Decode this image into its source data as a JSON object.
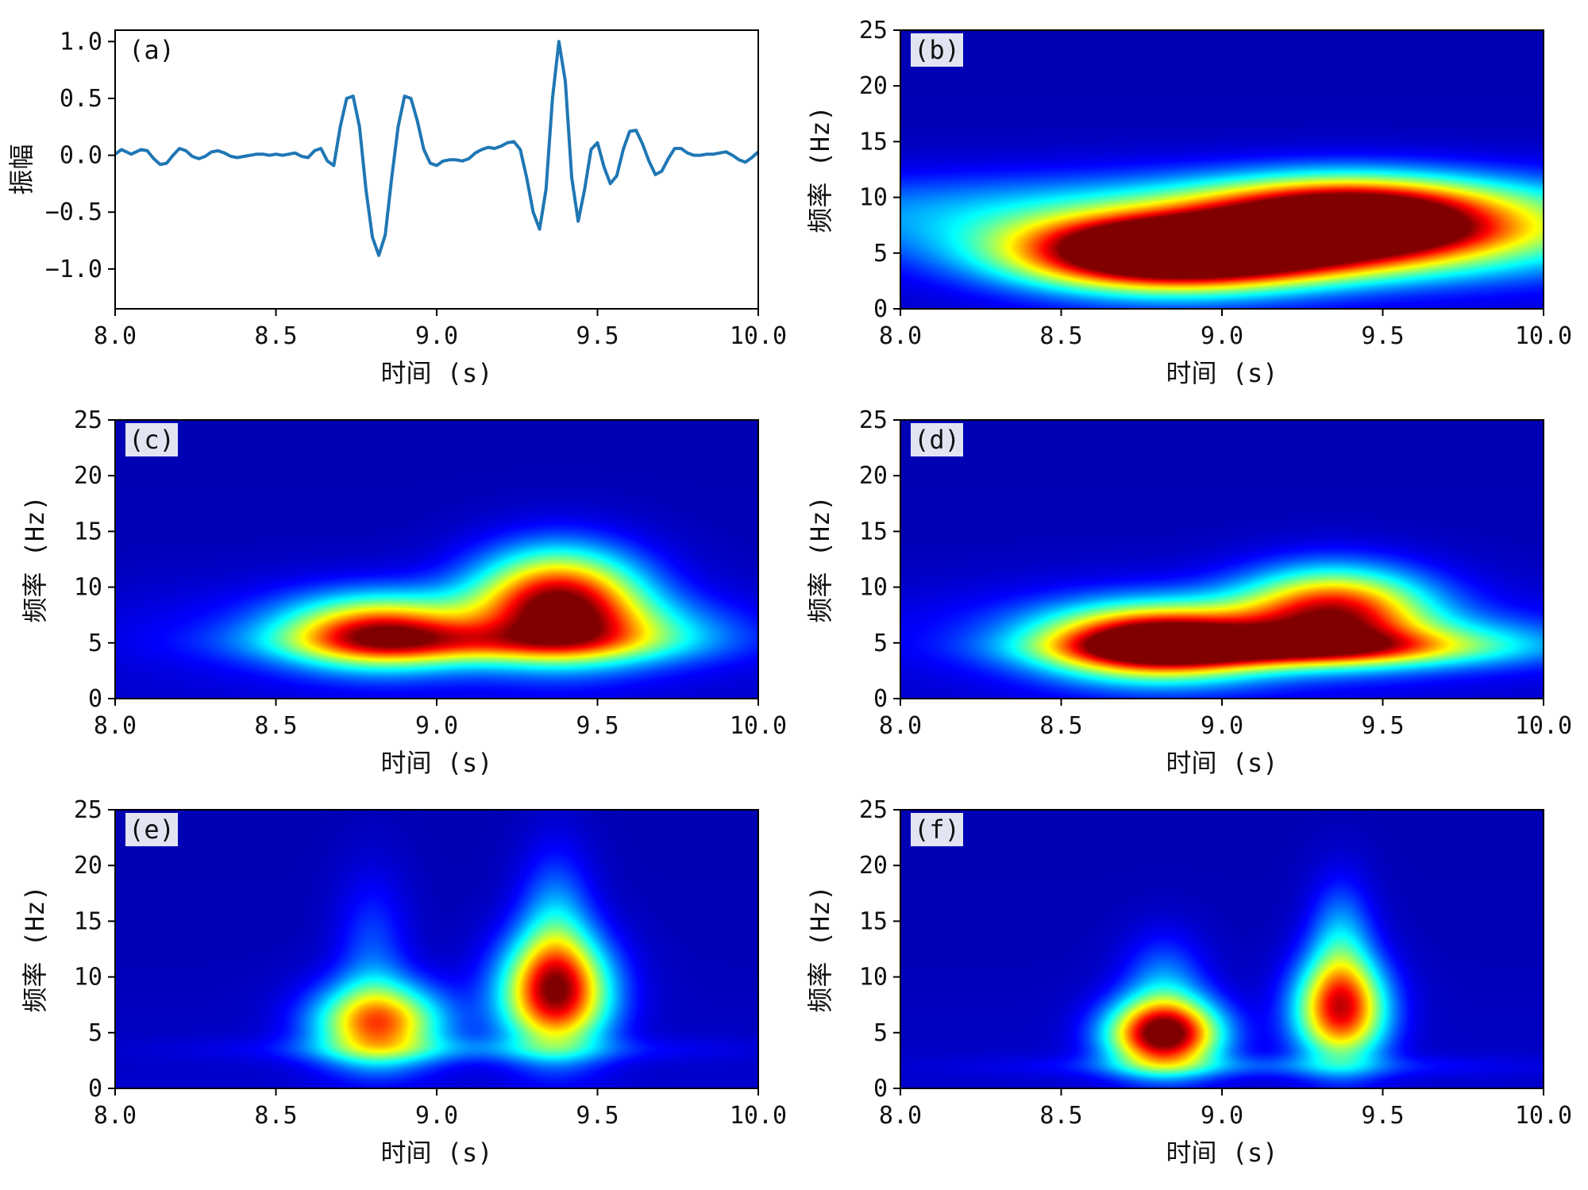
{
  "figure": {
    "colors": {
      "line": "#1f77b4",
      "axes": "#000000",
      "label_box": "#e2e4f2",
      "colormap": [
        "#00008f",
        "#0000ff",
        "#0080ff",
        "#00ffff",
        "#80ff80",
        "#ffff00",
        "#ff8000",
        "#ff0000",
        "#800000"
      ]
    }
  },
  "chart_data": [
    {
      "id": "a",
      "type": "line",
      "panel_label": "(a)",
      "xlabel": "时间 (s)",
      "ylabel": "振幅",
      "xlim": [
        8.0,
        10.0
      ],
      "ylim": [
        -1.35,
        1.1
      ],
      "xticks": [
        "8.0",
        "8.5",
        "9.0",
        "9.5",
        "10.0"
      ],
      "xtick_values": [
        8.0,
        8.5,
        9.0,
        9.5,
        10.0
      ],
      "yticks": [
        "1.0",
        "0.5",
        "0.0",
        "−0.5",
        "−1.0"
      ],
      "ytick_values": [
        1.0,
        0.5,
        0.0,
        -0.5,
        -1.0
      ],
      "x": [
        8.0,
        8.02,
        8.05,
        8.08,
        8.1,
        8.12,
        8.14,
        8.16,
        8.18,
        8.2,
        8.22,
        8.24,
        8.26,
        8.28,
        8.3,
        8.32,
        8.34,
        8.36,
        8.38,
        8.4,
        8.42,
        8.44,
        8.46,
        8.48,
        8.5,
        8.52,
        8.54,
        8.56,
        8.58,
        8.6,
        8.62,
        8.64,
        8.66,
        8.68,
        8.7,
        8.72,
        8.74,
        8.76,
        8.78,
        8.8,
        8.82,
        8.84,
        8.86,
        8.88,
        8.9,
        8.92,
        8.94,
        8.96,
        8.98,
        9.0,
        9.02,
        9.04,
        9.06,
        9.08,
        9.1,
        9.12,
        9.14,
        9.16,
        9.18,
        9.2,
        9.22,
        9.24,
        9.26,
        9.28,
        9.3,
        9.32,
        9.34,
        9.36,
        9.38,
        9.4,
        9.42,
        9.44,
        9.46,
        9.48,
        9.5,
        9.52,
        9.54,
        9.56,
        9.58,
        9.6,
        9.62,
        9.64,
        9.66,
        9.68,
        9.7,
        9.72,
        9.74,
        9.76,
        9.78,
        9.8,
        9.82,
        9.84,
        9.86,
        9.88,
        9.9,
        9.92,
        9.94,
        9.96,
        9.98,
        10.0
      ],
      "y": [
        0.01,
        0.05,
        0.01,
        0.05,
        0.04,
        -0.03,
        -0.08,
        -0.07,
        0.0,
        0.06,
        0.04,
        -0.01,
        -0.03,
        -0.01,
        0.03,
        0.04,
        0.02,
        -0.01,
        -0.02,
        -0.01,
        0.0,
        0.01,
        0.01,
        0.0,
        0.01,
        0.0,
        0.01,
        0.02,
        -0.01,
        -0.02,
        0.04,
        0.06,
        -0.05,
        -0.09,
        0.25,
        0.5,
        0.52,
        0.25,
        -0.3,
        -0.72,
        -0.88,
        -0.7,
        -0.2,
        0.25,
        0.52,
        0.5,
        0.3,
        0.05,
        -0.07,
        -0.09,
        -0.05,
        -0.04,
        -0.04,
        -0.05,
        -0.03,
        0.02,
        0.05,
        0.07,
        0.06,
        0.08,
        0.11,
        0.12,
        0.05,
        -0.2,
        -0.5,
        -0.65,
        -0.3,
        0.5,
        1.0,
        0.65,
        -0.2,
        -0.58,
        -0.3,
        0.05,
        0.11,
        -0.1,
        -0.25,
        -0.18,
        0.05,
        0.21,
        0.22,
        0.1,
        -0.05,
        -0.17,
        -0.14,
        -0.03,
        0.06,
        0.06,
        0.02,
        0.0,
        0.0,
        0.01,
        0.01,
        0.02,
        0.03,
        0.0,
        -0.04,
        -0.06,
        -0.02,
        0.03
      ]
    },
    {
      "id": "b",
      "type": "heatmap",
      "panel_label": "(b)",
      "xlabel": "时间 (s)",
      "ylabel": "频率 (Hz)",
      "xlim": [
        8.0,
        10.0
      ],
      "ylim": [
        0,
        25
      ],
      "xticks": [
        "8.0",
        "8.5",
        "9.0",
        "9.5",
        "10.0"
      ],
      "xtick_values": [
        8.0,
        8.5,
        9.0,
        9.5,
        10.0
      ],
      "yticks": [
        "0",
        "5",
        "10",
        "15",
        "20",
        "25"
      ],
      "ytick_values": [
        0,
        5,
        10,
        15,
        20,
        25
      ],
      "blobs": [
        {
          "t": 8.82,
          "f": 4.8,
          "st": 0.32,
          "sf": 2.3,
          "a": 0.98
        },
        {
          "t": 9.12,
          "f": 5.0,
          "st": 0.45,
          "sf": 1.8,
          "a": 0.5
        },
        {
          "t": 9.4,
          "f": 8.5,
          "st": 0.3,
          "sf": 2.2,
          "a": 0.85
        },
        {
          "t": 9.25,
          "f": 6.8,
          "st": 0.35,
          "sf": 1.0,
          "a": 0.25
        },
        {
          "t": 9.0,
          "f": 8.5,
          "st": 1.2,
          "sf": 2.6,
          "a": 0.3
        },
        {
          "t": 9.6,
          "f": 6.5,
          "st": 0.6,
          "sf": 3.0,
          "a": 0.25
        }
      ]
    },
    {
      "id": "c",
      "type": "heatmap",
      "panel_label": "(c)",
      "xlabel": "时间 (s)",
      "ylabel": "频率 (Hz)",
      "xlim": [
        8.0,
        10.0
      ],
      "ylim": [
        0,
        25
      ],
      "xticks": [
        "8.0",
        "8.5",
        "9.0",
        "9.5",
        "10.0"
      ],
      "xtick_values": [
        8.0,
        8.5,
        9.0,
        9.5,
        10.0
      ],
      "yticks": [
        "0",
        "5",
        "10",
        "15",
        "20",
        "25"
      ],
      "ytick_values": [
        0,
        5,
        10,
        15,
        20,
        25
      ],
      "blobs": [
        {
          "t": 8.82,
          "f": 6.0,
          "st": 0.2,
          "sf": 2.2,
          "a": 0.68
        },
        {
          "t": 9.38,
          "f": 8.8,
          "st": 0.18,
          "sf": 3.2,
          "a": 0.86
        },
        {
          "t": 9.1,
          "f": 5.0,
          "st": 0.4,
          "sf": 1.2,
          "a": 0.3
        },
        {
          "t": 9.55,
          "f": 6.0,
          "st": 0.25,
          "sf": 2.0,
          "a": 0.25
        },
        {
          "t": 9.0,
          "f": 6.0,
          "st": 0.6,
          "sf": 3.0,
          "a": 0.15
        }
      ]
    },
    {
      "id": "d",
      "type": "heatmap",
      "panel_label": "(d)",
      "xlabel": "时间 (s)",
      "ylabel": "频率 (Hz)",
      "xlim": [
        8.0,
        10.0
      ],
      "ylim": [
        0,
        25
      ],
      "xticks": [
        "8.0",
        "8.5",
        "9.0",
        "9.5",
        "10.0"
      ],
      "xtick_values": [
        8.0,
        8.5,
        9.0,
        9.5,
        10.0
      ],
      "yticks": [
        "0",
        "5",
        "10",
        "15",
        "20",
        "25"
      ],
      "ytick_values": [
        0,
        5,
        10,
        15,
        20,
        25
      ],
      "blobs": [
        {
          "t": 8.8,
          "f": 5.0,
          "st": 0.24,
          "sf": 2.2,
          "a": 1.0
        },
        {
          "t": 9.35,
          "f": 8.0,
          "st": 0.2,
          "sf": 2.6,
          "a": 0.75
        },
        {
          "t": 9.15,
          "f": 4.5,
          "st": 0.4,
          "sf": 1.0,
          "a": 0.45
        },
        {
          "t": 9.5,
          "f": 5.0,
          "st": 0.4,
          "sf": 1.6,
          "a": 0.3
        },
        {
          "t": 9.0,
          "f": 6.0,
          "st": 0.7,
          "sf": 3.0,
          "a": 0.15
        }
      ]
    },
    {
      "id": "e",
      "type": "heatmap",
      "panel_label": "(e)",
      "xlabel": "时间 (s)",
      "ylabel": "频率 (Hz)",
      "xlim": [
        8.0,
        10.0
      ],
      "ylim": [
        0,
        25
      ],
      "xticks": [
        "8.0",
        "8.5",
        "9.0",
        "9.5",
        "10.0"
      ],
      "xtick_values": [
        8.0,
        8.5,
        9.0,
        9.5,
        10.0
      ],
      "yticks": [
        "0",
        "5",
        "10",
        "15",
        "20",
        "25"
      ],
      "ytick_values": [
        0,
        5,
        10,
        15,
        20,
        25
      ],
      "blobs": [
        {
          "t": 8.82,
          "f": 5.8,
          "st": 0.14,
          "sf": 2.5,
          "a": 0.7
        },
        {
          "t": 9.37,
          "f": 8.5,
          "st": 0.12,
          "sf": 3.5,
          "a": 0.84
        },
        {
          "t": 9.37,
          "f": 14.0,
          "st": 0.08,
          "sf": 5.0,
          "a": 0.25
        },
        {
          "t": 8.8,
          "f": 12.0,
          "st": 0.08,
          "sf": 5.0,
          "a": 0.15
        },
        {
          "t": 9.1,
          "f": 3.5,
          "st": 0.5,
          "sf": 0.8,
          "a": 0.12
        }
      ]
    },
    {
      "id": "f",
      "type": "heatmap",
      "panel_label": "(f)",
      "xlabel": "时间 (s)",
      "ylabel": "频率 (Hz)",
      "xlim": [
        8.0,
        10.0
      ],
      "ylim": [
        0,
        25
      ],
      "xticks": [
        "8.0",
        "8.5",
        "9.0",
        "9.5",
        "10.0"
      ],
      "xtick_values": [
        8.0,
        8.5,
        9.0,
        9.5,
        10.0
      ],
      "yticks": [
        "0",
        "5",
        "10",
        "15",
        "20",
        "25"
      ],
      "ytick_values": [
        0,
        5,
        10,
        15,
        20,
        25
      ],
      "blobs": [
        {
          "t": 8.82,
          "f": 4.8,
          "st": 0.12,
          "sf": 2.2,
          "a": 1.0
        },
        {
          "t": 9.37,
          "f": 7.0,
          "st": 0.1,
          "sf": 3.2,
          "a": 0.8
        },
        {
          "t": 9.37,
          "f": 13.0,
          "st": 0.07,
          "sf": 4.0,
          "a": 0.25
        },
        {
          "t": 9.1,
          "f": 2.0,
          "st": 0.5,
          "sf": 0.7,
          "a": 0.12
        },
        {
          "t": 8.82,
          "f": 9.5,
          "st": 0.09,
          "sf": 3.0,
          "a": 0.2
        }
      ]
    }
  ]
}
